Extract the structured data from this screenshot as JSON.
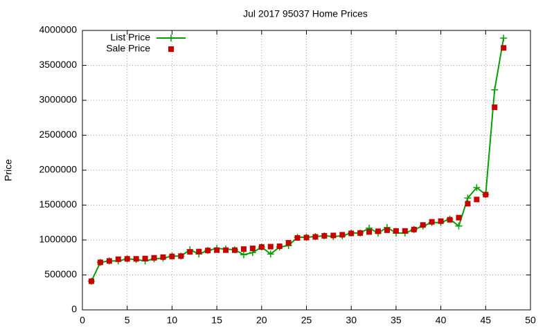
{
  "chart_data": {
    "type": "line",
    "title": "Jul 2017 95037 Home Prices",
    "ylabel": "Price",
    "x": [
      1,
      2,
      3,
      4,
      5,
      6,
      7,
      8,
      9,
      10,
      11,
      12,
      13,
      14,
      15,
      16,
      17,
      18,
      19,
      20,
      21,
      22,
      23,
      24,
      25,
      26,
      27,
      28,
      29,
      30,
      31,
      32,
      33,
      34,
      35,
      36,
      37,
      38,
      39,
      40,
      41,
      42,
      43,
      44,
      45,
      46,
      47
    ],
    "series": [
      {
        "name": "List Price",
        "color": "#00a000",
        "style": "linespoints",
        "values": [
          410000,
          680000,
          700000,
          700000,
          730000,
          720000,
          700000,
          730000,
          740000,
          770000,
          770000,
          860000,
          800000,
          850000,
          880000,
          870000,
          860000,
          790000,
          820000,
          900000,
          800000,
          900000,
          920000,
          1040000,
          1040000,
          1050000,
          1060000,
          1050000,
          1060000,
          1100000,
          1100000,
          1170000,
          1100000,
          1180000,
          1100000,
          1100000,
          1150000,
          1200000,
          1250000,
          1250000,
          1300000,
          1200000,
          1600000,
          1750000,
          1650000,
          3150000,
          3890000
        ]
      },
      {
        "name": "Sale Price",
        "color": "#c80000",
        "style": "points",
        "values": [
          410000,
          680000,
          700000,
          725000,
          730000,
          730000,
          735000,
          745000,
          755000,
          765000,
          770000,
          830000,
          835000,
          850000,
          855000,
          855000,
          855000,
          870000,
          880000,
          900000,
          905000,
          910000,
          960000,
          1030000,
          1035000,
          1045000,
          1060000,
          1065000,
          1075000,
          1095000,
          1100000,
          1115000,
          1125000,
          1140000,
          1130000,
          1130000,
          1150000,
          1215000,
          1260000,
          1270000,
          1290000,
          1320000,
          1520000,
          1580000,
          1650000,
          2900000,
          3750000
        ]
      }
    ],
    "xlim": [
      0,
      50
    ],
    "xticks": [
      0,
      5,
      10,
      15,
      20,
      25,
      30,
      35,
      40,
      45,
      50
    ],
    "ylim": [
      0,
      4000000
    ],
    "yticks": [
      0,
      500000,
      1000000,
      1500000,
      2000000,
      2500000,
      3000000,
      3500000,
      4000000
    ],
    "grid": true,
    "legend": "top-left"
  }
}
